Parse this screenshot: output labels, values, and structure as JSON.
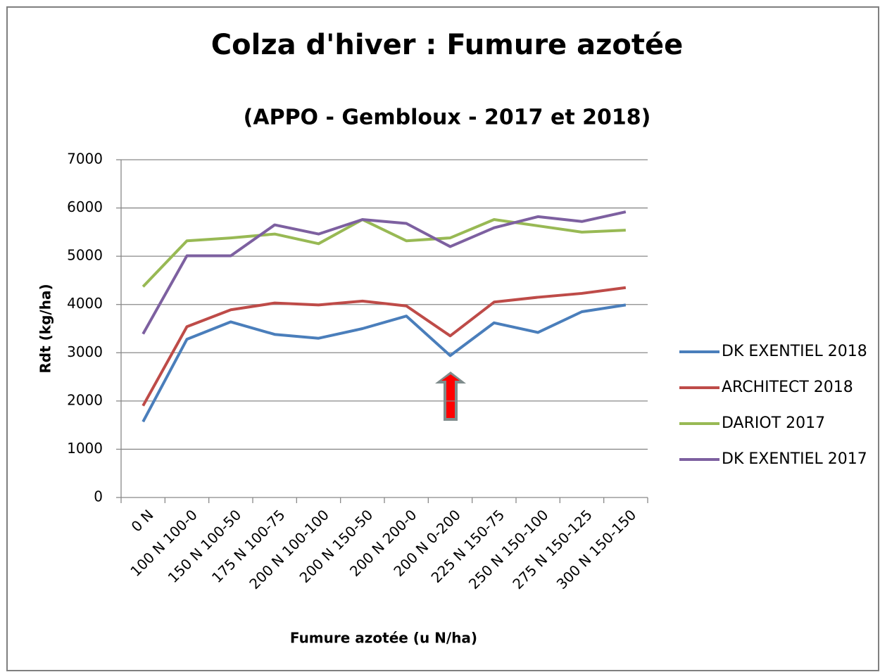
{
  "chart_data": {
    "type": "line",
    "title": "Colza d'hiver : Fumure azotée",
    "subtitle": "(APPO - Gembloux - 2017 et 2018)",
    "x_label": "Fumure azotée (u N/ha)",
    "y_label": "Rdt (kg/ha)",
    "categories": [
      "0 N",
      "100 N 100-0",
      "150 N 100-50",
      "175 N 100-75",
      "200 N 100-100",
      "200 N 150-50",
      "200 N 200-0",
      "200 N 0-200",
      "225 N 150-75",
      "250 N 150-100",
      "275 N 150-125",
      "300 N 150-150"
    ],
    "series": [
      {
        "name": "DK EXENTIEL 2018",
        "color": "#4a7ebb",
        "values": [
          1570,
          3280,
          3640,
          3380,
          3300,
          3500,
          3760,
          2940,
          3620,
          3420,
          3850,
          3990
        ]
      },
      {
        "name": "ARCHITECT 2018",
        "color": "#be4b48",
        "values": [
          1900,
          3540,
          3890,
          4030,
          3990,
          4070,
          3970,
          3350,
          4050,
          4150,
          4230,
          4350
        ]
      },
      {
        "name": "DARIOT 2017",
        "color": "#98b954",
        "values": [
          4370,
          5320,
          5380,
          5460,
          5260,
          5760,
          5320,
          5380,
          5760,
          5630,
          5500,
          5540
        ]
      },
      {
        "name": "DK EXENTIEL 2017",
        "color": "#7d60a0",
        "values": [
          3390,
          5010,
          5010,
          5650,
          5460,
          5760,
          5680,
          5200,
          5590,
          5820,
          5720,
          5920
        ]
      }
    ],
    "ylim": [
      0,
      7000
    ],
    "yticks": [
      0,
      1000,
      2000,
      3000,
      4000,
      5000,
      6000,
      7000
    ],
    "grid": true,
    "legend": "right"
  }
}
